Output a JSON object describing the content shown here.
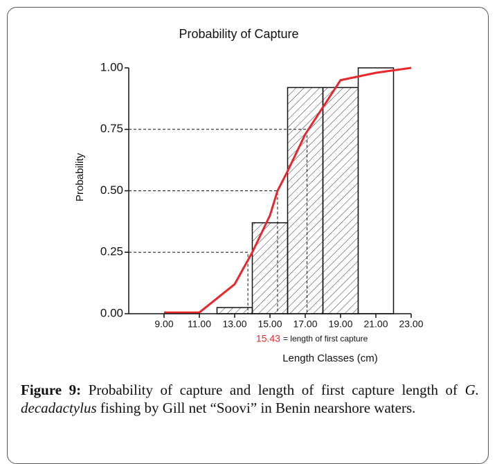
{
  "chart_data": {
    "type": "histogram",
    "title": "Probability of Capture",
    "xlabel": "Length Classes (cm)",
    "ylabel": "Probability",
    "bins": [
      12,
      14,
      16,
      18,
      20,
      22
    ],
    "counts": [
      0.025,
      0.37,
      0.92,
      0.92,
      1.0
    ],
    "hatched": [
      true,
      true,
      true,
      true,
      false
    ],
    "line": {
      "color": "#e8262b",
      "x": [
        9,
        11,
        13,
        14,
        15,
        15.43,
        16,
        17,
        19,
        21,
        23
      ],
      "values": [
        0.005,
        0.005,
        0.12,
        0.25,
        0.4,
        0.5,
        0.58,
        0.73,
        0.95,
        0.98,
        1.0
      ]
    },
    "reference_lines": [
      {
        "y": 0.25,
        "x": 13.75
      },
      {
        "y": 0.5,
        "x": 15.43
      },
      {
        "y": 0.75,
        "x": 17.1
      }
    ],
    "annotation": "= length of first capture",
    "xlim": [
      7,
      23
    ],
    "ylim": [
      0,
      1
    ],
    "xticks": [
      {
        "value": 9,
        "label": "9.00"
      },
      {
        "value": 11,
        "label": "11.00"
      },
      {
        "value": 13,
        "label": "13.00"
      },
      {
        "value": 15,
        "label": "15.00"
      },
      {
        "value": 17,
        "label": "17.00"
      },
      {
        "value": 19,
        "label": "19.00"
      },
      {
        "value": 21,
        "label": "21.00"
      },
      {
        "value": 23,
        "label": "23.00"
      }
    ],
    "yticks": [
      {
        "value": 0,
        "label": "0.00"
      },
      {
        "value": 0.25,
        "label": "0.25"
      },
      {
        "value": 0.5,
        "label": "0.50"
      },
      {
        "value": 0.75,
        "label": "0.75"
      },
      {
        "value": 1,
        "label": "1.00"
      }
    ]
  },
  "caption": {
    "label": "Figure 9:",
    "parts": [
      "Probability of capture and length of first capture length of ",
      "G. decadactylus",
      " fishing by Gill net “Soovi” in Benin nearshore waters."
    ]
  }
}
